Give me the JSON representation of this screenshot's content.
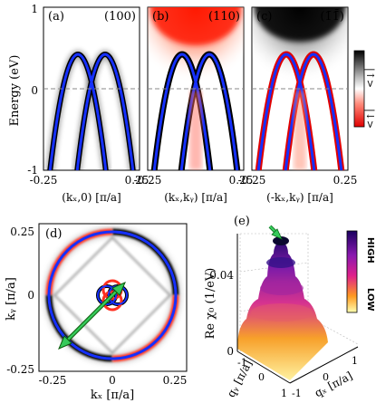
{
  "top": {
    "ylabel": "Energy (eV)",
    "yticks": [
      "1",
      "0",
      "-1"
    ],
    "xticks": [
      "-0.25",
      "0.25"
    ],
    "panels": [
      {
        "tag": "(a)",
        "dir": "(100)",
        "xlabel": "(kₓ,0) [π/a]"
      },
      {
        "tag": "(b)",
        "dir": "(110)",
        "xlabel": "(kₓ,kᵧ) [π/a]"
      },
      {
        "tag": "(c)",
        "dir": "(1̄1̄̄)",
        "xlabel": "(-kₓ,kᵧ) [π/a]"
      }
    ],
    "colorbar": {
      "top": "|↑>",
      "bottom": "|↓>"
    }
  },
  "d": {
    "tag": "(d)",
    "xlabel": "kₓ [π/a]",
    "ylabel": "kᵧ [π/a]",
    "xticks": [
      "-0.25",
      "0",
      "0.25"
    ],
    "yticks": [
      "0.25",
      "0",
      "-0.25"
    ]
  },
  "e": {
    "tag": "(e)",
    "zlabel": "Re χ₀ (1/eV)",
    "zticks": [
      "0.04",
      "0"
    ],
    "qx_label": "qₓ [π/a]",
    "qy_label": "qᵧ [π/a]",
    "qx_ticks": [
      "-1",
      "0",
      "1"
    ],
    "qy_ticks": [
      "-1",
      "0",
      "1"
    ],
    "colorbar": {
      "high": "HIGH",
      "low": "LOW"
    }
  }
}
